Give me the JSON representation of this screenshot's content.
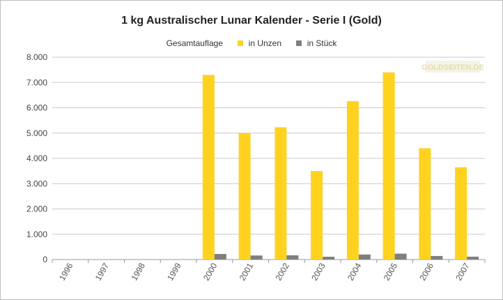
{
  "chart_data": {
    "type": "bar",
    "title": "1 kg Australischer Lunar Kalender - Serie I (Gold)",
    "legend_title": "Gesamtauflage",
    "legend_position": "top-center",
    "categories": [
      "1996",
      "1997",
      "1998",
      "1999",
      "2000",
      "2001",
      "2002",
      "2003",
      "2004",
      "2005",
      "2006",
      "2007"
    ],
    "series": [
      {
        "name": "in Unzen",
        "color": "#ffd21f",
        "values": [
          0,
          0,
          0,
          0,
          7300,
          5000,
          5230,
          3500,
          6260,
          7400,
          4400,
          3650
        ]
      },
      {
        "name": "in Stück",
        "color": "#7f7f7f",
        "values": [
          0,
          0,
          0,
          0,
          220,
          160,
          168,
          110,
          200,
          232,
          140,
          114
        ]
      }
    ],
    "ylim": [
      0,
      8000
    ],
    "yticks": [
      0,
      1000,
      2000,
      3000,
      4000,
      5000,
      6000,
      7000,
      8000
    ],
    "ytick_labels": [
      "0",
      "1.000",
      "2.000",
      "3.000",
      "4.000",
      "5.000",
      "6.000",
      "7.000",
      "8.000"
    ],
    "grid": true,
    "watermark": "GOLDSEITEN.DE"
  }
}
